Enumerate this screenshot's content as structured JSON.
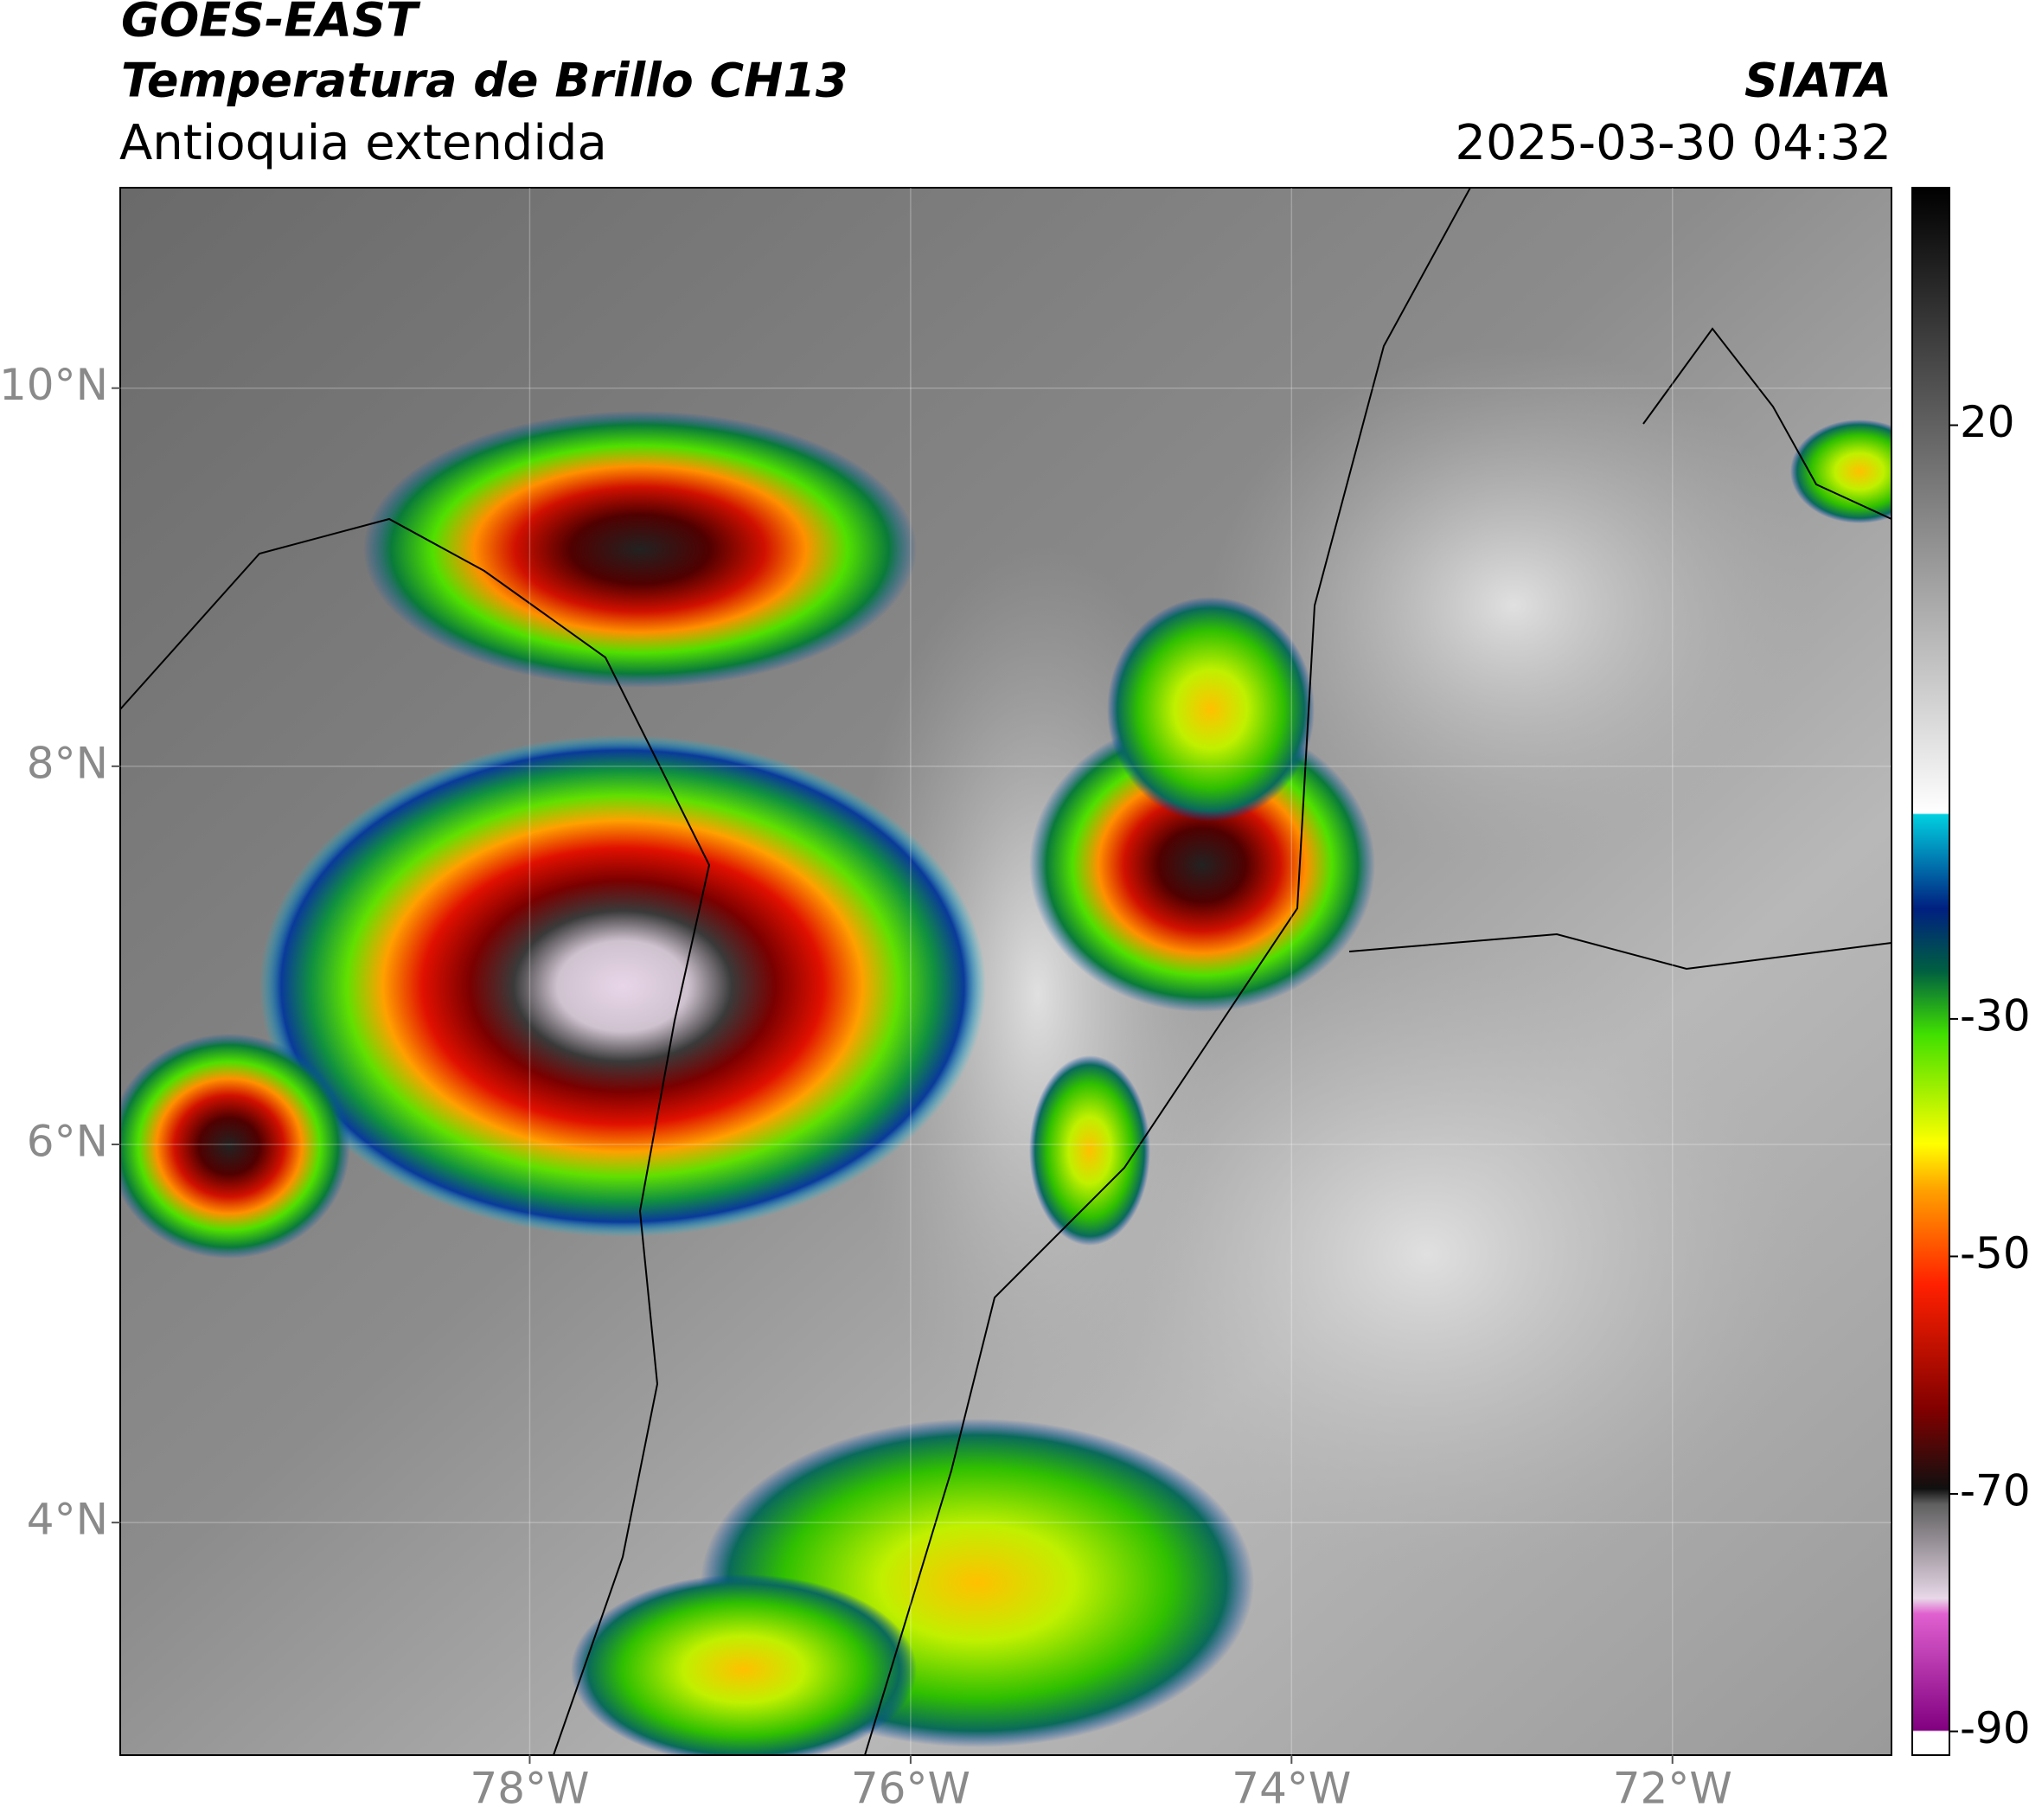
{
  "header": {
    "title": "GOES-EAST",
    "subtitle": "Temperatura de Brillo CH13",
    "region": "Antioquia extendida",
    "source": "SIATA",
    "datetime": "2025-03-30 04:32"
  },
  "map": {
    "xlim": [
      -80.15,
      -70.85
    ],
    "ylim": [
      2.77,
      11.06
    ],
    "xticks": [
      {
        "value": -78,
        "label": "78°W"
      },
      {
        "value": -76,
        "label": "76°W"
      },
      {
        "value": -74,
        "label": "74°W"
      },
      {
        "value": -72,
        "label": "72°W"
      }
    ],
    "yticks": [
      {
        "value": 10,
        "label": "10°N"
      },
      {
        "value": 8,
        "label": "8°N"
      },
      {
        "value": 6,
        "label": "6°N"
      },
      {
        "value": 4,
        "label": "4°N"
      }
    ],
    "grid": true
  },
  "colorbar": {
    "lim": [
      -92,
      40
    ],
    "ticks": [
      20,
      -30,
      -50,
      -70,
      -90
    ]
  }
}
